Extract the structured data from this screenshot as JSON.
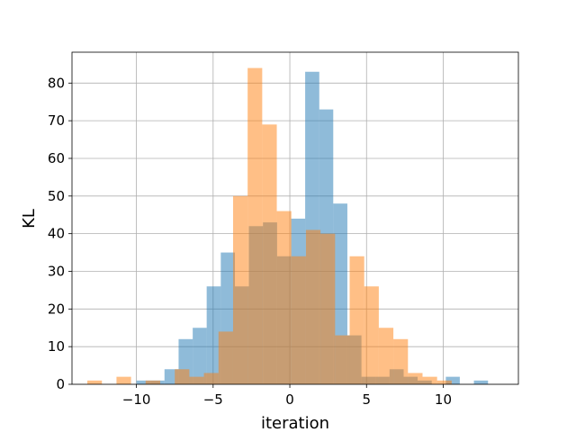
{
  "chart_data": {
    "type": "histogram",
    "xlabel": "iteration",
    "ylabel": "KL",
    "xlim": [
      -14.2,
      14.9
    ],
    "ylim": [
      0,
      88.2
    ],
    "grid": true,
    "x_ticks": [
      -10,
      -5,
      0,
      5,
      10
    ],
    "x_tick_labels": [
      "−10",
      "−5",
      "0",
      "5",
      "10"
    ],
    "y_ticks": [
      0,
      10,
      20,
      30,
      40,
      50,
      60,
      70,
      80
    ],
    "y_tick_labels": [
      "0",
      "10",
      "20",
      "30",
      "40",
      "50",
      "60",
      "70",
      "80"
    ],
    "series": [
      {
        "color": "#1f77b4",
        "opacity": 0.5,
        "bin_edges": [
          -10.0,
          -9.08,
          -8.17,
          -7.25,
          -6.33,
          -5.42,
          -4.5,
          -3.58,
          -2.67,
          -1.75,
          -0.83,
          0.08,
          1.0,
          1.92,
          2.83,
          3.75,
          4.67,
          5.58,
          6.5,
          7.42,
          8.33,
          9.25,
          10.17,
          11.08,
          12.0,
          12.92,
          13.83
        ],
        "counts": [
          1,
          1,
          4,
          12,
          15,
          26,
          35,
          26,
          42,
          43,
          34,
          44,
          83,
          73,
          48,
          13,
          2,
          2,
          4,
          2,
          1,
          0,
          2,
          0,
          1,
          0
        ]
      },
      {
        "color": "#ff7f0e",
        "opacity": 0.5,
        "bin_edges": [
          -13.2,
          -12.25,
          -11.3,
          -10.35,
          -9.4,
          -8.45,
          -7.5,
          -6.55,
          -5.6,
          -4.65,
          -3.7,
          -2.75,
          -1.8,
          -0.85,
          0.1,
          1.05,
          2.0,
          2.95,
          3.9,
          4.85,
          5.8,
          6.75,
          7.7,
          8.65,
          9.6,
          10.55
        ],
        "counts": [
          1,
          0,
          2,
          0,
          1,
          0,
          4,
          2,
          3,
          14,
          50,
          84,
          69,
          46,
          34,
          41,
          40,
          13,
          34,
          26,
          15,
          12,
          3,
          2,
          1
        ]
      }
    ]
  }
}
